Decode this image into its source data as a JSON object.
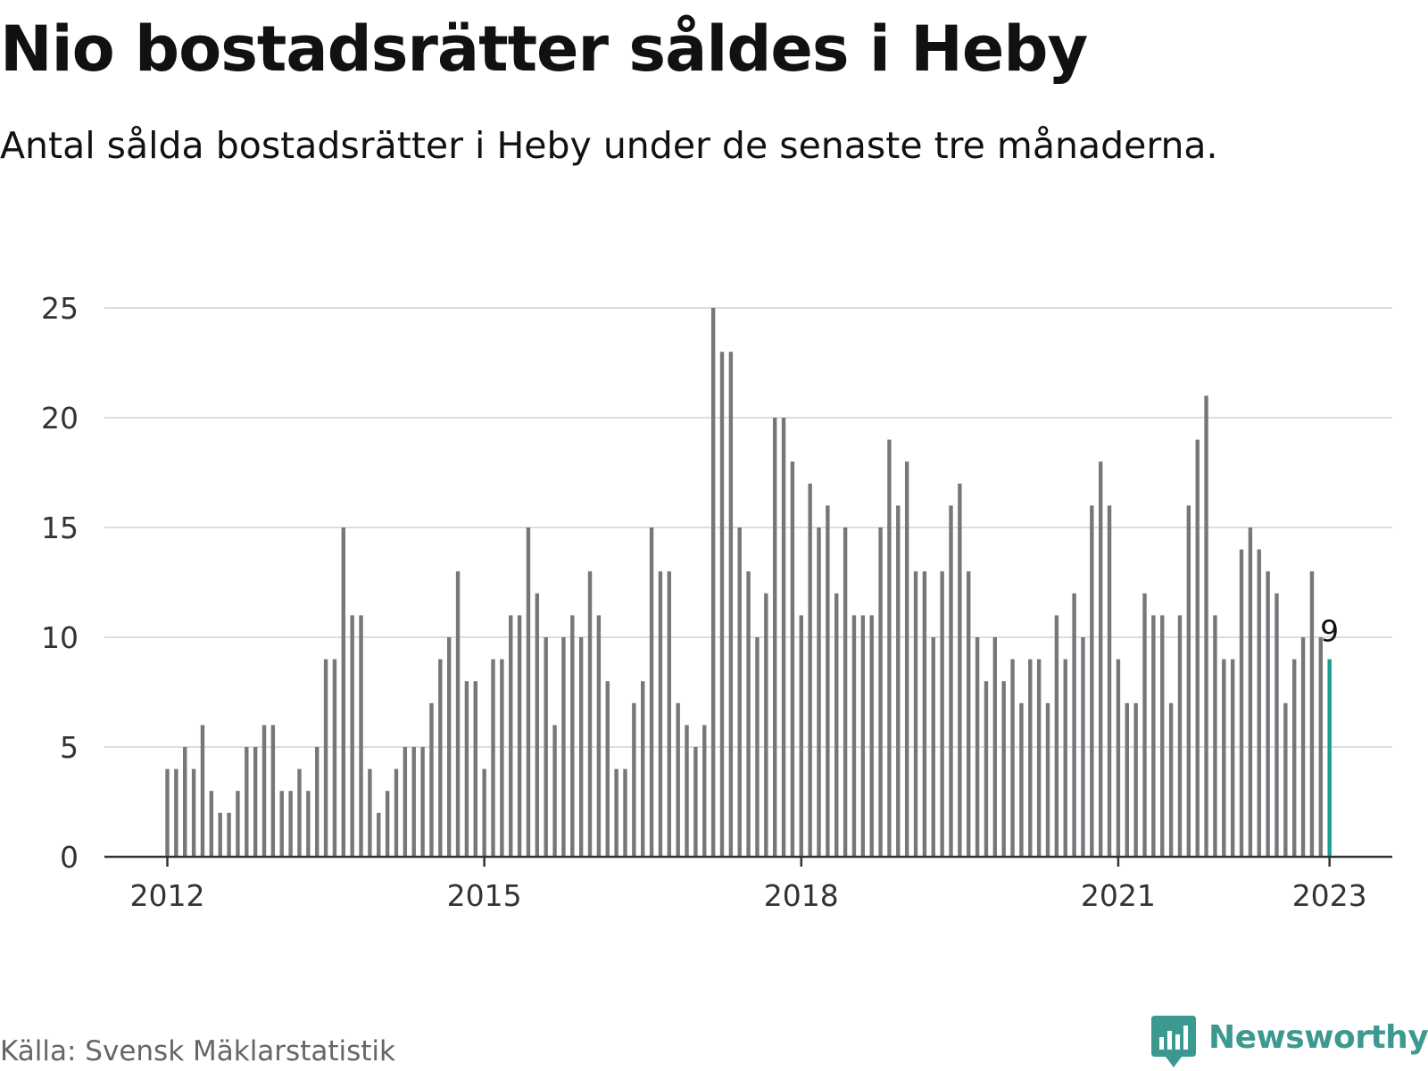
{
  "title": "Nio bostadsrätter såldes i Heby",
  "subtitle": "Antal sålda bostadsrätter i Heby under de senaste tre månaderna.",
  "source": "Källa: Svensk Mäklarstatistik",
  "brand": {
    "name": "Newsworthy",
    "icon": "newsworthy-logo-icon",
    "color": "#3c9990"
  },
  "colors": {
    "bar": "#77767b",
    "highlight": "#1a9e93",
    "grid": "#dddddd",
    "axis": "#333333"
  },
  "chart_data": {
    "type": "bar",
    "start": "2012-01",
    "interval": "month",
    "values": [
      4,
      4,
      5,
      4,
      6,
      3,
      2,
      2,
      3,
      5,
      5,
      6,
      6,
      3,
      3,
      4,
      3,
      5,
      9,
      9,
      15,
      11,
      11,
      4,
      2,
      3,
      4,
      5,
      5,
      5,
      7,
      9,
      10,
      13,
      8,
      8,
      4,
      9,
      9,
      11,
      11,
      15,
      12,
      10,
      6,
      10,
      11,
      10,
      13,
      11,
      8,
      4,
      4,
      7,
      8,
      15,
      13,
      13,
      7,
      6,
      5,
      6,
      25,
      23,
      23,
      15,
      13,
      10,
      12,
      20,
      20,
      18,
      11,
      17,
      15,
      16,
      12,
      15,
      11,
      11,
      11,
      15,
      19,
      16,
      18,
      13,
      13,
      10,
      13,
      16,
      17,
      13,
      10,
      8,
      10,
      8,
      9,
      7,
      9,
      9,
      7,
      11,
      9,
      12,
      10,
      16,
      18,
      16,
      9,
      7,
      7,
      12,
      11,
      11,
      7,
      11,
      16,
      19,
      21,
      11,
      9,
      9,
      14,
      15,
      14,
      13,
      12,
      7,
      9,
      10,
      13,
      10,
      9
    ],
    "highlight_index": 132,
    "value_label": "9",
    "x_ticks": [
      "2012",
      "2015",
      "2018",
      "2021",
      "2023"
    ],
    "y_ticks": [
      "0",
      "5",
      "10",
      "15",
      "20",
      "25"
    ],
    "ylim": [
      0,
      25
    ],
    "grid": true,
    "xlabel": "",
    "ylabel": ""
  }
}
